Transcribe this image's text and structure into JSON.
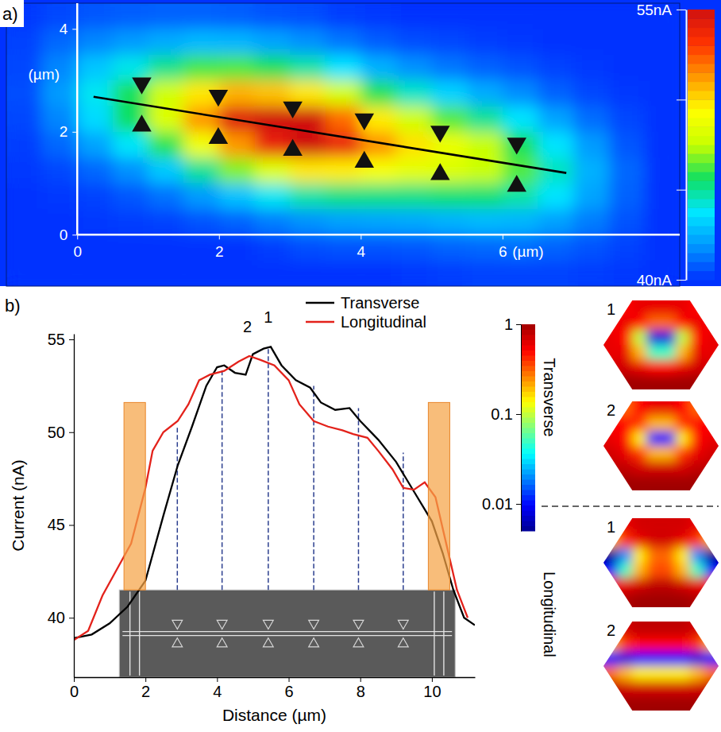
{
  "chart_data": [
    {
      "type": "heatmap",
      "panel_label": "a)",
      "x_label": "(µm)",
      "y_label": "(µm)",
      "xlim": [
        -1,
        8.5
      ],
      "ylim": [
        -1,
        4.5
      ],
      "xticks": [
        0,
        2,
        4,
        6
      ],
      "yticks": [
        0,
        2,
        4
      ],
      "x": [
        -0.75,
        -0.25,
        0.25,
        0.75,
        1.25,
        1.75,
        2.25,
        2.75,
        3.25,
        3.75,
        4.25,
        4.75,
        5.25,
        5.75,
        6.25,
        6.75,
        7.25,
        7.75,
        8.25
      ],
      "y": [
        4.25,
        3.75,
        3.25,
        2.75,
        2.25,
        1.75,
        1.25,
        0.75,
        0.25,
        -0.25,
        -0.75
      ],
      "values": [
        [
          40.1,
          40.4,
          40.7,
          40.8,
          40.9,
          40.9,
          40.8,
          40.6,
          40.5,
          40.2,
          40.1,
          40,
          40,
          40,
          40,
          40,
          40,
          40,
          40
        ],
        [
          40.3,
          41.0,
          41.6,
          42.0,
          42.4,
          42.7,
          42.6,
          42.2,
          41.8,
          41.3,
          40.8,
          40.5,
          40.4,
          40.2,
          40.1,
          40,
          40,
          40,
          40
        ],
        [
          40.4,
          41.6,
          43.0,
          44.0,
          45.1,
          46.1,
          46.2,
          45.7,
          44.8,
          43.7,
          42.5,
          41.8,
          41.3,
          40.9,
          40.6,
          40.3,
          40.1,
          40,
          40
        ],
        [
          40.5,
          42.0,
          43.9,
          45.7,
          47.8,
          49.8,
          50.8,
          50.5,
          49.8,
          47.9,
          45.8,
          44.4,
          43.3,
          42.4,
          41.7,
          40.9,
          40.4,
          40.1,
          40
        ],
        [
          40.4,
          41.6,
          43.5,
          45.6,
          48.2,
          51.3,
          54.5,
          55,
          55,
          52.1,
          49.7,
          47.8,
          46.3,
          45.0,
          43.7,
          42.2,
          41.1,
          40.4,
          40
        ],
        [
          40.2,
          41.0,
          42.2,
          43.8,
          45.9,
          48.9,
          51.3,
          54,
          55,
          54,
          51.4,
          49.9,
          48.7,
          47.5,
          45.7,
          43.7,
          42.0,
          40.7,
          40
        ],
        [
          40.1,
          40.4,
          41.0,
          41.8,
          43.1,
          45.0,
          46.8,
          48.3,
          49.8,
          49.7,
          49.1,
          48.5,
          48.2,
          47.6,
          46.3,
          44.5,
          42.5,
          41.0,
          40
        ],
        [
          40,
          40.1,
          40.3,
          40.7,
          41.2,
          42.0,
          42.9,
          43.9,
          44.8,
          45.2,
          45.2,
          45.2,
          45.4,
          45.4,
          44.8,
          43.7,
          42.2,
          40.9,
          40
        ],
        [
          40,
          40,
          40.1,
          40.2,
          40.3,
          40.6,
          40.9,
          41.4,
          41.8,
          42.1,
          42.2,
          42.3,
          42.5,
          42.7,
          42.6,
          42.1,
          41.4,
          40.6,
          40
        ],
        [
          40,
          40,
          40,
          40,
          40,
          40,
          40,
          40.2,
          40.5,
          40.6,
          40.6,
          40.7,
          40.9,
          41.0,
          41.1,
          40.9,
          40.6,
          40.3,
          40
        ],
        [
          40,
          40,
          40,
          40,
          40,
          40,
          40,
          40,
          40,
          40,
          40,
          40.1,
          40.2,
          40.3,
          40.3,
          40.3,
          40.2,
          40.1,
          40
        ]
      ],
      "colorbar": {
        "range": [
          40,
          55
        ],
        "ticks": [
          {
            "value": 40,
            "label": "40nA"
          },
          {
            "value": 45,
            "label": null
          },
          {
            "value": 50,
            "label": null
          },
          {
            "value": 55,
            "label": "55nA"
          }
        ]
      },
      "line": {
        "x": [
          0.23,
          6.9
        ],
        "y": [
          2.68,
          1.2
        ]
      },
      "markers": {
        "marker": "triangle",
        "x": [
          0.91,
          1.99,
          3.04,
          4.05,
          5.12,
          6.2
        ],
        "y": [
          2.53,
          2.29,
          2.06,
          1.83,
          1.59,
          1.36
        ]
      }
    },
    {
      "type": "line",
      "panel_label": "b)",
      "x_label": "Distance (µm)",
      "y_label": "Current (nA)",
      "xlim": [
        0,
        11.2
      ],
      "ylim": [
        36.8,
        55.3
      ],
      "xticks": [
        0,
        2,
        4,
        6,
        8,
        10
      ],
      "yticks": [
        40,
        45,
        50,
        55
      ],
      "legend": "top",
      "series": [
        {
          "name": "Transverse",
          "color": "#000000",
          "x": [
            0,
            0.5,
            1.0,
            1.5,
            2.0,
            2.5,
            2.9,
            3.3,
            3.7,
            4.0,
            4.2,
            4.5,
            4.8,
            5.0,
            5.3,
            5.5,
            5.8,
            6.2,
            6.6,
            6.9,
            7.3,
            7.7,
            8.0,
            8.5,
            9.0,
            9.5,
            10.0,
            10.3,
            10.6,
            10.9,
            11.2
          ],
          "values": [
            38.9,
            39.1,
            39.7,
            40.6,
            42.0,
            45.5,
            48.2,
            50.3,
            52.5,
            53.5,
            53.6,
            53.2,
            53.1,
            54.2,
            54.5,
            54.6,
            53.6,
            52.8,
            52.4,
            51.6,
            51.2,
            51.3,
            50.6,
            49.6,
            48.4,
            46.8,
            45.2,
            43.5,
            41.5,
            40.0,
            39.6
          ]
        },
        {
          "name": "Longitudinal",
          "color": "#e3221b",
          "x": [
            0,
            0.4,
            0.8,
            1.2,
            1.6,
            2.0,
            2.2,
            2.5,
            2.9,
            3.2,
            3.5,
            3.8,
            4.2,
            4.6,
            4.9,
            5.2,
            5.6,
            6.0,
            6.3,
            6.7,
            7.1,
            7.5,
            7.8,
            8.2,
            8.5,
            8.9,
            9.2,
            9.5,
            9.8,
            10.1,
            10.4,
            10.7,
            11.0
          ],
          "values": [
            38.8,
            39.3,
            41.2,
            42.6,
            44.0,
            47.0,
            49.0,
            50.0,
            50.6,
            51.5,
            52.8,
            53.1,
            53.3,
            53.8,
            54.1,
            53.9,
            53.6,
            52.8,
            51.5,
            50.6,
            50.3,
            50.1,
            49.9,
            49.7,
            49.0,
            48.0,
            47.0,
            46.9,
            47.3,
            46.5,
            44.0,
            41.5,
            40.0
          ]
        }
      ],
      "highlight_regions": [
        {
          "x0": 1.4,
          "x1": 2.0,
          "y0": 41.5,
          "y1": 51.6
        },
        {
          "x0": 9.9,
          "x1": 10.5,
          "y0": 41.5,
          "y1": 51.6
        }
      ],
      "sem_image": {
        "x0": 1.27,
        "x1": 10.65,
        "y0": 36.8,
        "y1": 41.5
      },
      "antennas": {
        "x": [
          2.89,
          4.14,
          5.43,
          6.7,
          7.95,
          9.2
        ],
        "y": [
          50.3,
          53.4,
          54.6,
          52.5,
          51.3,
          48.9
        ]
      },
      "annotations": [
        {
          "text": "1",
          "x": 5.43,
          "y": 54.6
        },
        {
          "text": "2",
          "x": 4.85,
          "y": 54.1
        }
      ]
    },
    {
      "type": "heatmap",
      "log": true,
      "colorbar": {
        "range": [
          0.005,
          1
        ],
        "ticks": [
          0.01,
          0.1,
          1
        ]
      },
      "groups": [
        {
          "name": "Transverse",
          "images": [
            {
              "label": "1",
              "values": [
                [
                  0.4,
                  0.5,
                  0.6,
                  0.6,
                  0.6,
                  0.6,
                  0.5,
                  0.4
                ],
                [
                  0.5,
                  0.6,
                  0.5,
                  0.3,
                  0.3,
                  0.5,
                  0.6,
                  0.5
                ],
                [
                  0.6,
                  0.5,
                  0.1,
                  0.008,
                  0.008,
                  0.1,
                  0.5,
                  0.6
                ],
                [
                  0.6,
                  0.6,
                  0.2,
                  0.05,
                  0.05,
                  0.2,
                  0.6,
                  0.6
                ],
                [
                  0.7,
                  0.7,
                  0.6,
                  0.5,
                  0.5,
                  0.6,
                  0.7,
                  0.7
                ],
                [
                  0.9,
                  1,
                  1,
                  1,
                  1,
                  1,
                  1,
                  0.9
                ]
              ]
            },
            {
              "label": "2",
              "values": [
                [
                  0.5,
                  0.3,
                  0.5,
                  0.6,
                  0.6,
                  0.5,
                  0.3,
                  0.5
                ],
                [
                  0.5,
                  0.5,
                  0.4,
                  0.2,
                  0.2,
                  0.4,
                  0.5,
                  0.5
                ],
                [
                  0.6,
                  0.5,
                  0.15,
                  0.01,
                  0.01,
                  0.15,
                  0.5,
                  0.6
                ],
                [
                  0.7,
                  0.6,
                  0.4,
                  0.2,
                  0.2,
                  0.4,
                  0.6,
                  0.7
                ],
                [
                  0.8,
                  0.8,
                  0.7,
                  0.7,
                  0.7,
                  0.7,
                  0.8,
                  0.8
                ],
                [
                  1,
                  1,
                  1,
                  1,
                  1,
                  1,
                  1,
                  1
                ]
              ]
            }
          ]
        },
        {
          "name": "Longitudinal",
          "images": [
            {
              "label": "1",
              "values": [
                [
                  0.5,
                  0.6,
                  0.7,
                  0.7,
                  0.7,
                  0.7,
                  0.6,
                  0.5
                ],
                [
                  0.2,
                  0.4,
                  0.6,
                  0.7,
                  0.7,
                  0.6,
                  0.4,
                  0.2
                ],
                [
                  0.005,
                  0.02,
                  0.15,
                  0.3,
                  0.3,
                  0.15,
                  0.02,
                  0.005
                ],
                [
                  0.01,
                  0.05,
                  0.2,
                  0.35,
                  0.35,
                  0.2,
                  0.05,
                  0.01
                ],
                [
                  0.5,
                  0.6,
                  0.7,
                  0.8,
                  0.8,
                  0.7,
                  0.6,
                  0.5
                ],
                [
                  0.8,
                  0.9,
                  1,
                  1,
                  1,
                  1,
                  0.9,
                  0.8
                ]
              ]
            },
            {
              "label": "2",
              "values": [
                [
                  0.6,
                  0.7,
                  0.8,
                  0.8,
                  0.8,
                  0.8,
                  0.7,
                  0.6
                ],
                [
                  0.2,
                  0.4,
                  0.5,
                  0.5,
                  0.5,
                  0.5,
                  0.4,
                  0.2
                ],
                [
                  0.01,
                  0.008,
                  0.01,
                  0.01,
                  0.01,
                  0.01,
                  0.008,
                  0.01
                ],
                [
                  0.3,
                  0.2,
                  0.15,
                  0.15,
                  0.15,
                  0.15,
                  0.2,
                  0.3
                ],
                [
                  0.8,
                  0.7,
                  0.7,
                  0.7,
                  0.7,
                  0.7,
                  0.7,
                  0.8
                ],
                [
                  1,
                  1,
                  1,
                  1,
                  1,
                  1,
                  1,
                  1
                ]
              ]
            }
          ]
        }
      ]
    }
  ]
}
